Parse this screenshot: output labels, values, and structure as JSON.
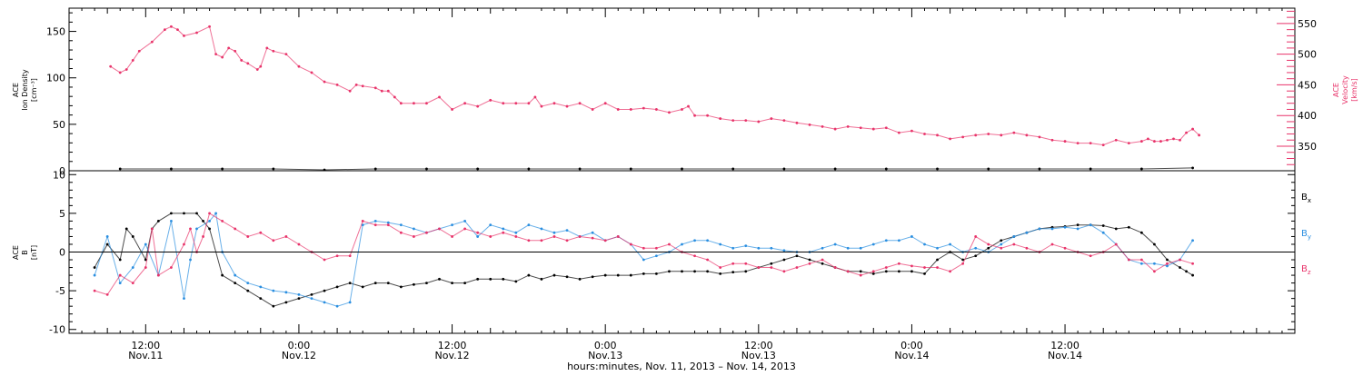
{
  "chart_data": [
    {
      "type": "scatter",
      "panel": "top",
      "ylabel_left": [
        "ACE",
        "Ion Density",
        "[cm⁻³]"
      ],
      "ylabel_right": [
        "ACE",
        "Velocity",
        "[km/s]"
      ],
      "ylim_left": [
        0,
        175
      ],
      "ylim_right": [
        310,
        575
      ],
      "yticks_left": [
        "0",
        "50",
        "100",
        "150"
      ],
      "yticks_right": [
        "350",
        "400",
        "450",
        "500",
        "550"
      ],
      "series": [
        {
          "color": "#000000",
          "axis": "left",
          "x_hours": [
            8,
            16,
            24,
            32,
            40,
            48,
            56,
            64,
            72,
            80,
            88,
            96,
            104,
            112,
            120,
            128,
            136,
            144,
            152,
            160,
            168,
            176
          ],
          "y": [
            2,
            2,
            2,
            2,
            1,
            2,
            2,
            2,
            2,
            2,
            2,
            2,
            2,
            2,
            2,
            2,
            2,
            2,
            2,
            2,
            2,
            3
          ]
        },
        {
          "color": "#e8336a",
          "axis": "right",
          "x_hours": [
            6.5,
            8,
            9,
            10,
            11,
            13,
            15,
            16,
            17,
            18,
            20,
            22,
            23,
            24,
            25,
            26,
            27,
            28,
            29.5,
            30,
            31,
            32,
            34,
            36,
            38,
            40,
            42,
            44,
            45,
            46,
            48,
            49,
            50,
            51,
            52,
            54,
            56,
            58,
            60,
            62,
            64,
            66,
            68,
            70,
            72,
            73,
            74,
            76,
            78,
            80,
            82,
            84,
            86,
            88,
            90,
            92,
            94,
            96,
            97,
            98,
            100,
            102,
            104,
            106,
            108,
            110,
            112,
            114,
            116,
            118,
            120,
            122,
            124,
            126,
            128,
            130,
            132,
            134,
            136,
            138,
            140,
            142,
            144,
            146,
            148,
            150,
            152,
            154,
            156,
            158,
            160,
            162,
            164,
            166,
            168,
            169,
            170,
            171,
            172,
            173,
            174,
            175,
            176,
            177
          ],
          "y": [
            480,
            470,
            475,
            490,
            505,
            520,
            540,
            545,
            540,
            530,
            535,
            545,
            500,
            495,
            510,
            505,
            490,
            485,
            475,
            480,
            510,
            505,
            500,
            480,
            470,
            455,
            450,
            440,
            450,
            448,
            445,
            440,
            440,
            430,
            420,
            420,
            420,
            430,
            410,
            420,
            415,
            425,
            420,
            420,
            420,
            430,
            415,
            420,
            415,
            420,
            410,
            420,
            410,
            410,
            412,
            410,
            405,
            410,
            415,
            400,
            400,
            395,
            392,
            392,
            390,
            395,
            392,
            388,
            385,
            382,
            378,
            382,
            380,
            378,
            380,
            372,
            375,
            370,
            368,
            362,
            365,
            368,
            370,
            368,
            372,
            368,
            365,
            360,
            358,
            355,
            355,
            352,
            360,
            355,
            358,
            362,
            358,
            358,
            360,
            362,
            360,
            372,
            378,
            368
          ]
        }
      ]
    },
    {
      "type": "scatter",
      "panel": "bottom",
      "ylabel_left": [
        "ACE",
        "B",
        "[nT]"
      ],
      "ylim": [
        -10.5,
        10.5
      ],
      "yticks": [
        "-10",
        "-5",
        "0",
        "5",
        "10"
      ],
      "zero_line": true,
      "legend_position": "right",
      "series": [
        {
          "name": "Bx",
          "legend_main": "B",
          "legend_sub": "x",
          "color": "#000000",
          "x_hours": [
            4,
            6,
            8,
            9,
            10,
            12,
            13,
            14,
            16,
            18,
            20,
            21,
            22,
            24,
            26,
            28,
            30,
            32,
            34,
            36,
            38,
            40,
            42,
            44,
            46,
            48,
            50,
            52,
            54,
            56,
            58,
            60,
            62,
            64,
            66,
            68,
            70,
            72,
            74,
            76,
            78,
            80,
            82,
            84,
            86,
            88,
            90,
            92,
            94,
            96,
            98,
            100,
            102,
            104,
            106,
            108,
            110,
            112,
            114,
            116,
            118,
            120,
            122,
            124,
            126,
            128,
            130,
            132,
            134,
            136,
            138,
            140,
            142,
            144,
            146,
            148,
            150,
            152,
            154,
            156,
            158,
            160,
            162,
            164,
            166,
            168,
            170,
            172,
            174,
            175,
            176
          ],
          "y": [
            -2,
            1,
            -1,
            3,
            2,
            -1,
            3,
            4,
            5,
            5,
            5,
            4,
            3,
            -3,
            -4,
            -5,
            -6,
            -7,
            -6.5,
            -6,
            -5.5,
            -5,
            -4.5,
            -4,
            -4.5,
            -4,
            -4,
            -4.5,
            -4.2,
            -4,
            -3.5,
            -4,
            -4,
            -3.5,
            -3.5,
            -3.5,
            -3.8,
            -3,
            -3.5,
            -3,
            -3.2,
            -3.5,
            -3.2,
            -3,
            -3,
            -3,
            -2.8,
            -2.8,
            -2.5,
            -2.5,
            -2.5,
            -2.5,
            -2.8,
            -2.6,
            -2.5,
            -2,
            -1.5,
            -1,
            -0.5,
            -1,
            -1.5,
            -2,
            -2.5,
            -2.5,
            -2.8,
            -2.5,
            -2.5,
            -2.5,
            -2.8,
            -1,
            0,
            -1,
            -0.5,
            0.5,
            1.5,
            2,
            2.5,
            3,
            3.2,
            3.3,
            3.5,
            3.5,
            3.4,
            3,
            3.2,
            2.5,
            1,
            -1,
            -2,
            -2.5,
            -3
          ]
        },
        {
          "name": "By",
          "legend_main": "B",
          "legend_sub": "y",
          "color": "#2a8ee0",
          "x_hours": [
            4,
            6,
            8,
            10,
            12,
            14,
            16,
            18,
            19,
            20,
            22,
            23,
            24,
            26,
            28,
            30,
            32,
            34,
            36,
            38,
            40,
            42,
            44,
            46,
            48,
            50,
            52,
            54,
            56,
            58,
            60,
            62,
            64,
            66,
            68,
            70,
            72,
            74,
            76,
            78,
            80,
            82,
            84,
            86,
            88,
            90,
            92,
            94,
            96,
            98,
            100,
            102,
            104,
            106,
            108,
            110,
            112,
            114,
            116,
            118,
            120,
            122,
            124,
            126,
            128,
            130,
            132,
            134,
            136,
            138,
            140,
            142,
            144,
            146,
            148,
            150,
            152,
            154,
            156,
            158,
            160,
            162,
            164,
            166,
            168,
            170,
            172,
            174,
            176
          ],
          "y": [
            -3,
            2,
            -4,
            -2,
            1,
            -3,
            4,
            -6,
            -1,
            3,
            4,
            5,
            0,
            -3,
            -4,
            -4.5,
            -5,
            -5.2,
            -5.5,
            -6,
            -6.5,
            -7,
            -6.5,
            3.5,
            4,
            3.8,
            3.5,
            3,
            2.5,
            3,
            3.5,
            4,
            2,
            3.5,
            3,
            2.5,
            3.5,
            3,
            2.5,
            2.8,
            2,
            2.5,
            1.5,
            2,
            1,
            -1,
            -0.5,
            0,
            1,
            1.5,
            1.5,
            1,
            0.5,
            0.8,
            0.5,
            0.5,
            0.2,
            0,
            0,
            0.5,
            1,
            0.5,
            0.5,
            1,
            1.5,
            1.5,
            2,
            1,
            0.5,
            1,
            0,
            0.5,
            0,
            1,
            2,
            2.5,
            3,
            3,
            3.2,
            3,
            3.5,
            2.5,
            1,
            -1,
            -1.5,
            -1.5,
            -1.8,
            -1,
            1.5
          ]
        },
        {
          "name": "Bz",
          "legend_main": "B",
          "legend_sub": "z",
          "color": "#e8336a",
          "x_hours": [
            4,
            6,
            8,
            10,
            12,
            13,
            14,
            16,
            18,
            19,
            20,
            21,
            22,
            24,
            26,
            28,
            30,
            32,
            34,
            36,
            38,
            40,
            42,
            44,
            46,
            48,
            50,
            52,
            54,
            56,
            58,
            60,
            62,
            64,
            66,
            68,
            70,
            72,
            74,
            76,
            78,
            80,
            82,
            84,
            86,
            88,
            90,
            92,
            94,
            96,
            98,
            100,
            102,
            104,
            106,
            108,
            110,
            112,
            114,
            116,
            118,
            120,
            122,
            124,
            126,
            128,
            130,
            132,
            134,
            136,
            138,
            140,
            142,
            144,
            146,
            148,
            150,
            152,
            154,
            156,
            158,
            160,
            162,
            164,
            166,
            168,
            170,
            172,
            174,
            176
          ],
          "y": [
            -5,
            -5.5,
            -3,
            -4,
            -2,
            3,
            -3,
            -2,
            1,
            3,
            0,
            2,
            5,
            4,
            3,
            2,
            2.5,
            1.5,
            2,
            1,
            0,
            -1,
            -0.5,
            -0.5,
            4,
            3.5,
            3.5,
            2.5,
            2,
            2.5,
            3,
            2,
            3,
            2.5,
            2,
            2.5,
            2,
            1.5,
            1.5,
            2,
            1.5,
            2,
            1.8,
            1.5,
            2,
            1,
            0.5,
            0.5,
            1,
            0,
            -0.5,
            -1,
            -2,
            -1.5,
            -1.5,
            -2,
            -2,
            -2.5,
            -2,
            -1.5,
            -1,
            -2,
            -2.5,
            -3,
            -2.5,
            -2,
            -1.5,
            -1.8,
            -2,
            -2,
            -2.5,
            -1.5,
            2,
            1,
            0.5,
            1,
            0.5,
            0,
            1,
            0.5,
            0,
            -0.5,
            0,
            1,
            -1,
            -1,
            -2.5,
            -1.5,
            -1,
            -1.5
          ]
        }
      ]
    }
  ],
  "x_axis": {
    "range_hours": [
      0,
      192
    ],
    "ticks": [
      {
        "hours": 12,
        "time": "12:00",
        "date": "Nov.11"
      },
      {
        "hours": 36,
        "time": "0:00",
        "date": "Nov.12"
      },
      {
        "hours": 60,
        "time": "12:00",
        "date": "Nov.12"
      },
      {
        "hours": 84,
        "time": "0:00",
        "date": "Nov.13"
      },
      {
        "hours": 108,
        "time": "12:00",
        "date": "Nov.13"
      },
      {
        "hours": 132,
        "time": "0:00",
        "date": "Nov.14"
      },
      {
        "hours": 156,
        "time": "12:00",
        "date": "Nov.14"
      }
    ],
    "xlabel": "hours:minutes, Nov. 11, 2013 – Nov. 14, 2013"
  }
}
